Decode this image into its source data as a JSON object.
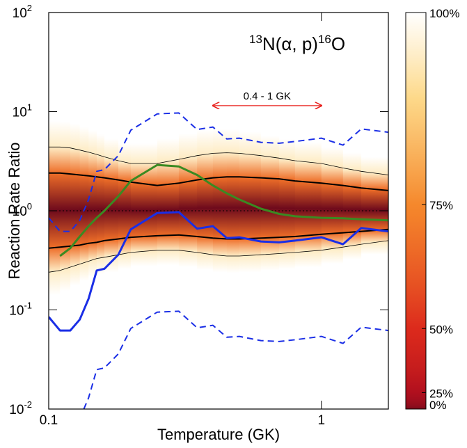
{
  "chart_data": {
    "type": "line",
    "title": [
      {
        "text": "13",
        "sup": true
      },
      {
        "text": "N(α, p)"
      },
      {
        "text": "16",
        "sup": true
      },
      {
        "text": "O"
      }
    ],
    "xlabel": "Temperature (GK)",
    "ylabel": "Reaction Rate Ratio",
    "xscale": "log",
    "yscale": "log",
    "xlim": [
      0.1,
      1.76
    ],
    "ylim": [
      0.01,
      100
    ],
    "xticks": [
      0.1,
      1
    ],
    "yticks": [
      {
        "value": 0.01,
        "label": "10",
        "exponent": "-2"
      },
      {
        "value": 0.1,
        "label": "10",
        "exponent": "-1"
      },
      {
        "value": 1,
        "label": "10",
        "exponent": "0"
      },
      {
        "value": 10,
        "label": "10",
        "exponent": "1"
      },
      {
        "value": 100,
        "label": "10",
        "exponent": "2"
      }
    ],
    "reference_line": 1,
    "x": [
      0.1,
      0.11,
      0.12,
      0.13,
      0.14,
      0.15,
      0.16,
      0.18,
      0.2,
      0.25,
      0.3,
      0.35,
      0.4,
      0.45,
      0.5,
      0.6,
      0.7,
      0.8,
      1,
      1.2,
      1.4,
      1.76
    ],
    "series": [
      {
        "role": "sigma2-upper",
        "color": "#000000",
        "width": 0.8,
        "values": [
          4.4,
          4.4,
          4.3,
          4.1,
          3.9,
          3.7,
          3.5,
          3.2,
          3.0,
          3.0,
          3.3,
          3.6,
          3.8,
          3.85,
          3.8,
          3.6,
          3.4,
          3.2,
          3.0,
          2.7,
          2.5,
          2.3
        ]
      },
      {
        "role": "sigma1-upper",
        "color": "#000000",
        "width": 2,
        "values": [
          2.4,
          2.4,
          2.35,
          2.3,
          2.25,
          2.2,
          2.15,
          2.05,
          1.95,
          1.8,
          1.9,
          2.05,
          2.15,
          2.2,
          2.2,
          2.15,
          2.1,
          2.0,
          1.9,
          1.8,
          1.7,
          1.6
        ]
      },
      {
        "role": "sigma1-lower",
        "color": "#000000",
        "width": 2,
        "values": [
          0.42,
          0.43,
          0.44,
          0.45,
          0.47,
          0.48,
          0.5,
          0.52,
          0.54,
          0.56,
          0.57,
          0.55,
          0.53,
          0.52,
          0.52,
          0.53,
          0.54,
          0.55,
          0.58,
          0.6,
          0.62,
          0.65
        ]
      },
      {
        "role": "sigma2-lower",
        "color": "#000000",
        "width": 0.8,
        "values": [
          0.24,
          0.25,
          0.27,
          0.29,
          0.31,
          0.33,
          0.34,
          0.36,
          0.38,
          0.4,
          0.4,
          0.38,
          0.36,
          0.35,
          0.35,
          0.36,
          0.37,
          0.38,
          0.4,
          0.43,
          0.46,
          0.5
        ]
      },
      {
        "color": "#3a8a22",
        "width": 3,
        "values": [
          null,
          0.35,
          0.42,
          0.55,
          0.7,
          0.85,
          1.0,
          1.4,
          2.0,
          2.9,
          2.8,
          2.3,
          1.8,
          1.5,
          1.3,
          1.05,
          0.93,
          0.88,
          0.85,
          0.84,
          0.82,
          0.8
        ]
      },
      {
        "color": "#1a2ee6",
        "width": 3,
        "values": [
          0.085,
          0.062,
          0.062,
          0.08,
          0.13,
          0.25,
          0.26,
          0.36,
          0.65,
          0.95,
          0.97,
          0.66,
          0.7,
          0.53,
          0.54,
          0.49,
          0.48,
          0.5,
          0.54,
          0.46,
          0.67,
          0.62
        ]
      },
      {
        "color": "#1a2ee6",
        "width": 2,
        "dashed": true,
        "values": [
          0.85,
          0.62,
          0.62,
          0.8,
          1.3,
          2.5,
          2.6,
          3.6,
          6.5,
          9.5,
          9.7,
          6.6,
          7,
          5.3,
          5.4,
          4.9,
          4.8,
          5,
          5.4,
          4.6,
          6.7,
          6.2
        ]
      },
      {
        "color": "#1a2ee6",
        "width": 2,
        "dashed": true,
        "values": [
          null,
          null,
          null,
          0.008,
          0.013,
          0.025,
          0.026,
          0.036,
          0.065,
          0.095,
          0.097,
          0.066,
          0.07,
          0.053,
          0.054,
          0.049,
          0.048,
          0.05,
          0.054,
          0.046,
          0.067,
          0.062
        ]
      }
    ],
    "annotation": {
      "text": "0.4 - 1 GK",
      "x": [
        0.4,
        1
      ],
      "y": 11.5,
      "color": "#e8201c"
    },
    "colorbar": {
      "ticks": [
        {
          "value": 0,
          "label": "0%"
        },
        {
          "value": 25,
          "label": "25%"
        },
        {
          "value": 50,
          "label": "50%"
        },
        {
          "value": 75,
          "label": "75%"
        },
        {
          "value": 100,
          "label": "100%"
        }
      ],
      "colorscale": [
        {
          "value": 0,
          "color": "#6e0a1c"
        },
        {
          "value": 25,
          "color": "#b00f1e"
        },
        {
          "value": 50,
          "color": "#dc2a1c"
        },
        {
          "value": 75,
          "color": "#f5882c"
        },
        {
          "value": 90,
          "color": "#fdd98a"
        },
        {
          "value": 100,
          "color": "#ffffff"
        }
      ]
    }
  }
}
